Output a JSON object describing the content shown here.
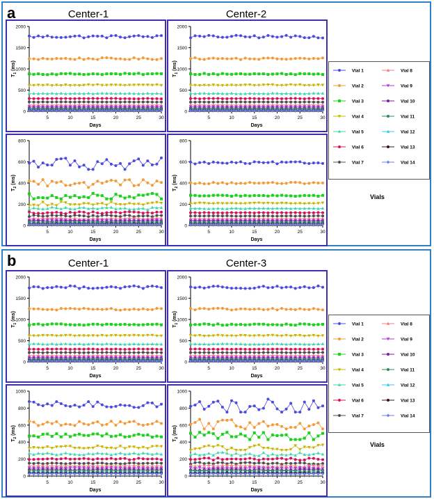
{
  "figure": {
    "panel_a": {
      "label": "a",
      "col_titles": [
        "Center-1",
        "Center-2"
      ],
      "vials_label": "Vials",
      "charts": [
        {
          "id": "a-t1-c1",
          "quantity": "T1",
          "center": "Center-1",
          "ylabel_main": "T",
          "ylabel_sub": "1",
          "ylabel_unit": " (ms)",
          "xlabel": "Days",
          "ylim": [
            0,
            2000
          ],
          "yticks": [
            0,
            500,
            1000,
            1500,
            2000
          ],
          "xticks": [
            5,
            10,
            15,
            20,
            25,
            30
          ],
          "variability": "low"
        },
        {
          "id": "a-t1-c2",
          "quantity": "T1",
          "center": "Center-2",
          "ylabel_main": "T",
          "ylabel_sub": "1",
          "ylabel_unit": " (ms)",
          "xlabel": "Days",
          "ylim": [
            0,
            2000
          ],
          "yticks": [
            0,
            500,
            1000,
            1500,
            2000
          ],
          "xticks": [
            5,
            10,
            15,
            20,
            25,
            30
          ],
          "variability": "low"
        },
        {
          "id": "a-t2-c1",
          "quantity": "T2",
          "center": "Center-1",
          "ylabel_main": "T",
          "ylabel_sub": "2",
          "ylabel_unit": " (ms)",
          "xlabel": "Days",
          "ylim": [
            0,
            800
          ],
          "yticks": [
            0,
            200,
            400,
            600,
            800
          ],
          "xticks": [
            5,
            10,
            15,
            20,
            25,
            30
          ],
          "variability": "high"
        },
        {
          "id": "a-t2-c2",
          "quantity": "T2",
          "center": "Center-2",
          "ylabel_main": "T",
          "ylabel_sub": "2",
          "ylabel_unit": " (ms)",
          "xlabel": "Days",
          "ylim": [
            0,
            800
          ],
          "yticks": [
            0,
            200,
            400,
            600,
            800
          ],
          "xticks": [
            5,
            10,
            15,
            20,
            25,
            30
          ],
          "variability": "low"
        }
      ]
    },
    "panel_b": {
      "label": "b",
      "col_titles": [
        "Center-1",
        "Center-3"
      ],
      "vials_label": "Vials",
      "charts": [
        {
          "id": "b-t1-c1",
          "quantity": "T1",
          "center": "Center-1",
          "ylabel_main": "T",
          "ylabel_sub": "1",
          "ylabel_unit": " (ms)",
          "xlabel": "Days",
          "ylim": [
            0,
            2000
          ],
          "yticks": [
            0,
            500,
            1000,
            1500,
            2000
          ],
          "xticks": [
            5,
            10,
            15,
            20,
            25,
            30
          ],
          "variability": "low"
        },
        {
          "id": "b-t1-c3",
          "quantity": "T1",
          "center": "Center-3",
          "ylabel_main": "T",
          "ylabel_sub": "1",
          "ylabel_unit": " (ms)",
          "xlabel": "Days",
          "ylim": [
            0,
            2000
          ],
          "yticks": [
            0,
            500,
            1000,
            1500,
            2000
          ],
          "xticks": [
            5,
            10,
            15,
            20,
            25,
            30
          ],
          "variability": "low"
        },
        {
          "id": "b-t2-c1",
          "quantity": "T2",
          "center": "Center-1",
          "ylabel_main": "T",
          "ylabel_sub": "2",
          "ylabel_unit": " (ms)",
          "xlabel": "Days",
          "ylim": [
            0,
            1000
          ],
          "yticks": [
            0,
            200,
            400,
            600,
            800,
            1000
          ],
          "xticks": [
            5,
            10,
            15,
            20,
            25,
            30
          ],
          "variability": "medium"
        },
        {
          "id": "b-t2-c3",
          "quantity": "T2",
          "center": "Center-3",
          "ylabel_main": "T",
          "ylabel_sub": "2",
          "ylabel_unit": " (ms)",
          "xlabel": "Days",
          "ylim": [
            0,
            1000
          ],
          "yticks": [
            0,
            200,
            400,
            600,
            800,
            1000
          ],
          "xticks": [
            5,
            10,
            15,
            20,
            25,
            30
          ],
          "variability": "high"
        }
      ]
    }
  },
  "chart_data": {
    "type": "line",
    "x_range": [
      1,
      30
    ],
    "x_label": "Days",
    "series": [
      {
        "name": "Vial 1",
        "color": "#4a4adf",
        "marker": "circle",
        "t1_ms": 1760,
        "t2_a_ms": 590,
        "t2_b_ms": 840
      },
      {
        "name": "Vial 2",
        "color": "#f29a38",
        "marker": "circle",
        "t1_ms": 1240,
        "t2_a_ms": 400,
        "t2_b_ms": 620
      },
      {
        "name": "Vial 3",
        "color": "#1ed01e",
        "marker": "square",
        "t1_ms": 880,
        "t2_a_ms": 280,
        "t2_b_ms": 480
      },
      {
        "name": "Vial 4",
        "color": "#c8b400",
        "marker": "triangle-down",
        "t1_ms": 620,
        "t2_a_ms": 210,
        "t2_b_ms": 340
      },
      {
        "name": "Vial 5",
        "color": "#3fd7b0",
        "marker": "triangle",
        "t1_ms": 420,
        "t2_a_ms": 160,
        "t2_b_ms": 260
      },
      {
        "name": "Vial 6",
        "color": "#d4145a",
        "marker": "circle",
        "t1_ms": 300,
        "t2_a_ms": 120,
        "t2_b_ms": 200
      },
      {
        "name": "Vial 7",
        "color": "#4d4d4d",
        "marker": "circle",
        "t1_ms": 220,
        "t2_a_ms": 90,
        "t2_b_ms": 150
      },
      {
        "name": "Vial 8",
        "color": "#f07c7c",
        "marker": "triangle",
        "t1_ms": 150,
        "t2_a_ms": 65,
        "t2_b_ms": 120
      },
      {
        "name": "Vial 9",
        "color": "#b03adb",
        "marker": "triangle-down",
        "t1_ms": 110,
        "t2_a_ms": 50,
        "t2_b_ms": 95
      },
      {
        "name": "Vial 10",
        "color": "#7a1fa2",
        "marker": "circle",
        "t1_ms": 80,
        "t2_a_ms": 40,
        "t2_b_ms": 75
      },
      {
        "name": "Vial 11",
        "color": "#2e8b57",
        "marker": "circle",
        "t1_ms": 60,
        "t2_a_ms": 30,
        "t2_b_ms": 60
      },
      {
        "name": "Vial 12",
        "color": "#35c8e8",
        "marker": "triangle",
        "t1_ms": 45,
        "t2_a_ms": 22,
        "t2_b_ms": 45
      },
      {
        "name": "Vial 13",
        "color": "#3a0f2e",
        "marker": "circle",
        "t1_ms": 32,
        "t2_a_ms": 16,
        "t2_b_ms": 35
      },
      {
        "name": "Vial 14",
        "color": "#6b7cf0",
        "marker": "diamond",
        "t1_ms": 22,
        "t2_a_ms": 10,
        "t2_b_ms": 25
      }
    ]
  }
}
